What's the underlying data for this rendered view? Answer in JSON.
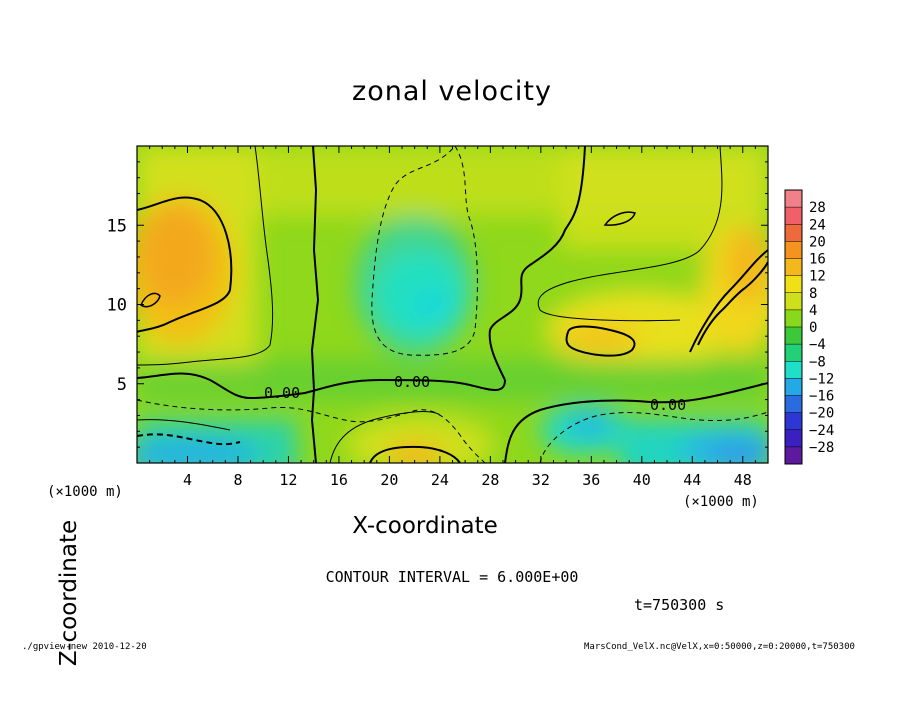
{
  "chart_data": {
    "type": "heatmap",
    "title": "zonal velocity",
    "xlabel": "X-coordinate",
    "ylabel": "Z-coordinate",
    "x_unit_label": "(×1000 m)",
    "x_ticks": [
      4,
      8,
      12,
      16,
      20,
      24,
      28,
      32,
      36,
      40,
      44,
      48
    ],
    "y_ticks": [
      5,
      10,
      15
    ],
    "xlim": [
      0,
      50
    ],
    "ylim": [
      0,
      20
    ],
    "colorbar": {
      "labels": [
        28,
        24,
        20,
        16,
        12,
        8,
        4,
        0,
        -4,
        -8,
        -12,
        -16,
        -20,
        -24,
        -28
      ],
      "colors": [
        "#f0808a",
        "#f06068",
        "#ee6a3c",
        "#f5931f",
        "#f5b81c",
        "#f0e018",
        "#cde01a",
        "#88d81c",
        "#3cc83a",
        "#22d078",
        "#1ee0c8",
        "#25a8e6",
        "#2a6be0",
        "#2f36d6",
        "#3a20c0",
        "#5d1a9e"
      ]
    },
    "contour_labels": [
      "0.00",
      "0.00",
      "0.00"
    ],
    "contour_interval_text": "CONTOUR INTERVAL = 6.000E+00",
    "time_text": "t=750300 s",
    "footer_left": "./gpview-new  2010-12-20",
    "footer_right": "MarsCond_VelX.nc@VelX,x=0:50000,z=0:20000,t=750300"
  }
}
